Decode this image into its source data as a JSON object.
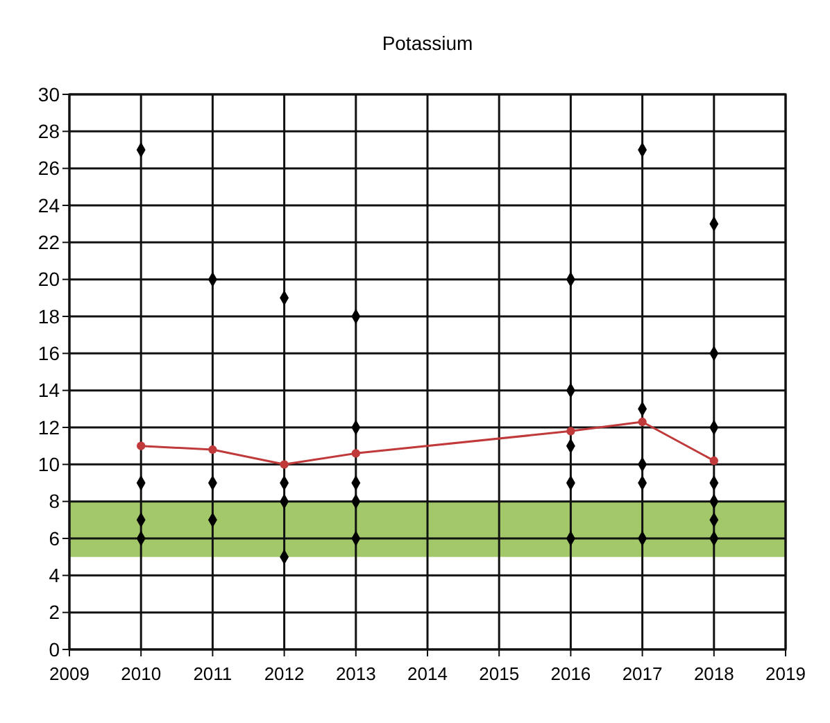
{
  "chart_data": {
    "type": "scatter",
    "title": "Potassium",
    "xlim": [
      2009,
      2019
    ],
    "xticks": [
      2009,
      2010,
      2011,
      2012,
      2013,
      2014,
      2015,
      2016,
      2017,
      2018,
      2019
    ],
    "ylim": [
      0,
      30
    ],
    "yticks": [
      0,
      2,
      4,
      6,
      8,
      10,
      12,
      14,
      16,
      18,
      20,
      22,
      24,
      26,
      28,
      30
    ],
    "grid": true,
    "bands": [
      {
        "axis": "y",
        "from": 5,
        "to": 8,
        "color": "#a3c86a"
      }
    ],
    "series": [
      {
        "color": "#000000",
        "marker": "diamond",
        "x": [
          2010,
          2010,
          2010,
          2010,
          2011,
          2011,
          2011,
          2012,
          2012,
          2012,
          2012,
          2013,
          2013,
          2013,
          2013,
          2013,
          2016,
          2016,
          2016,
          2016,
          2016,
          2017,
          2017,
          2017,
          2017,
          2017,
          2018,
          2018,
          2018,
          2018,
          2018,
          2018,
          2018
        ],
        "values": [
          27,
          9,
          7,
          6,
          20,
          9,
          7,
          19,
          9,
          8,
          5,
          18,
          12,
          9,
          8,
          6,
          20,
          14,
          11,
          9,
          6,
          27,
          13,
          10,
          9,
          6,
          23,
          16,
          12,
          9,
          8,
          7,
          6
        ]
      },
      {
        "type": "line",
        "color": "#c0393b",
        "marker": "circle",
        "line_style": "solid",
        "x": [
          2010,
          2011,
          2012,
          2013,
          2016,
          2017,
          2018
        ],
        "values": [
          11,
          10.8,
          10,
          10.6,
          11.8,
          12.3,
          10.2
        ]
      }
    ]
  }
}
